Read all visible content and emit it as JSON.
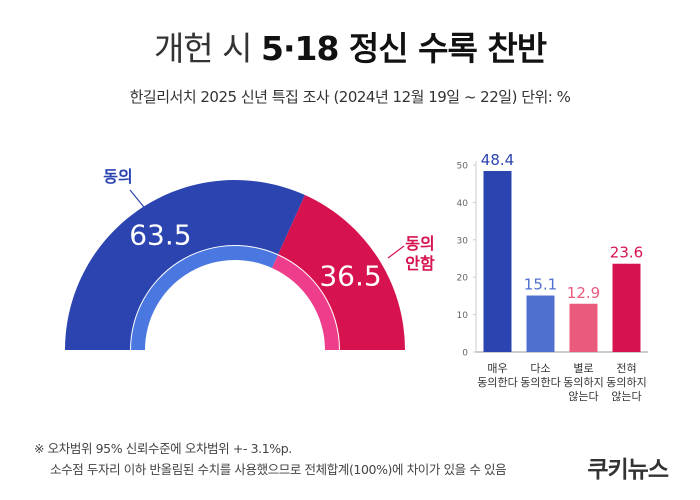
{
  "header": {
    "title_light": "개헌 시",
    "title_bold": "5·18 정신 수록 찬반",
    "subtitle": "한길리서치 2025 신년 특집 조사 (2024년 12월 19일 ~ 22일) 단위: %"
  },
  "footnote": {
    "line1": "※ 오차범위 95% 신뢰수준에 오차범위 +- 3.1%p.",
    "line2": "소수점 두자리 이하 반올림된 수치를 사용했으므로 전체합계(100%)에 차이가 있을 수 있음"
  },
  "logo": "쿠키뉴스",
  "colors": {
    "agree": "#2b44b0",
    "agree_inner": "#4a78e0",
    "disagree": "#d7134f",
    "disagree_inner": "#ee3d8a",
    "bar_somewhat_agree": "#5070d0",
    "bar_somewhat_disagree": "#ea5a7c"
  },
  "chart_data": [
    {
      "type": "pie",
      "categories": [
        "동의",
        "동의 안함"
      ],
      "values": [
        63.5,
        36.5
      ],
      "value_labels": [
        "63.5",
        "36.5"
      ],
      "legend_labels": [
        "동의",
        "동의\n안함"
      ],
      "shape": "half-donut"
    },
    {
      "type": "bar",
      "categories": [
        "매우\n동의한다",
        "다소\n동의한다",
        "별로\n동의하지\n않는다",
        "전혀\n동의하지\n않는다"
      ],
      "values": [
        48.4,
        15.1,
        12.9,
        23.6
      ],
      "value_labels": [
        "48.4",
        "15.1",
        "12.9",
        "23.6"
      ],
      "ylim": [
        0,
        50
      ],
      "yticks": [
        "0",
        "10",
        "20",
        "30",
        "40",
        "50"
      ],
      "grid": false
    }
  ]
}
